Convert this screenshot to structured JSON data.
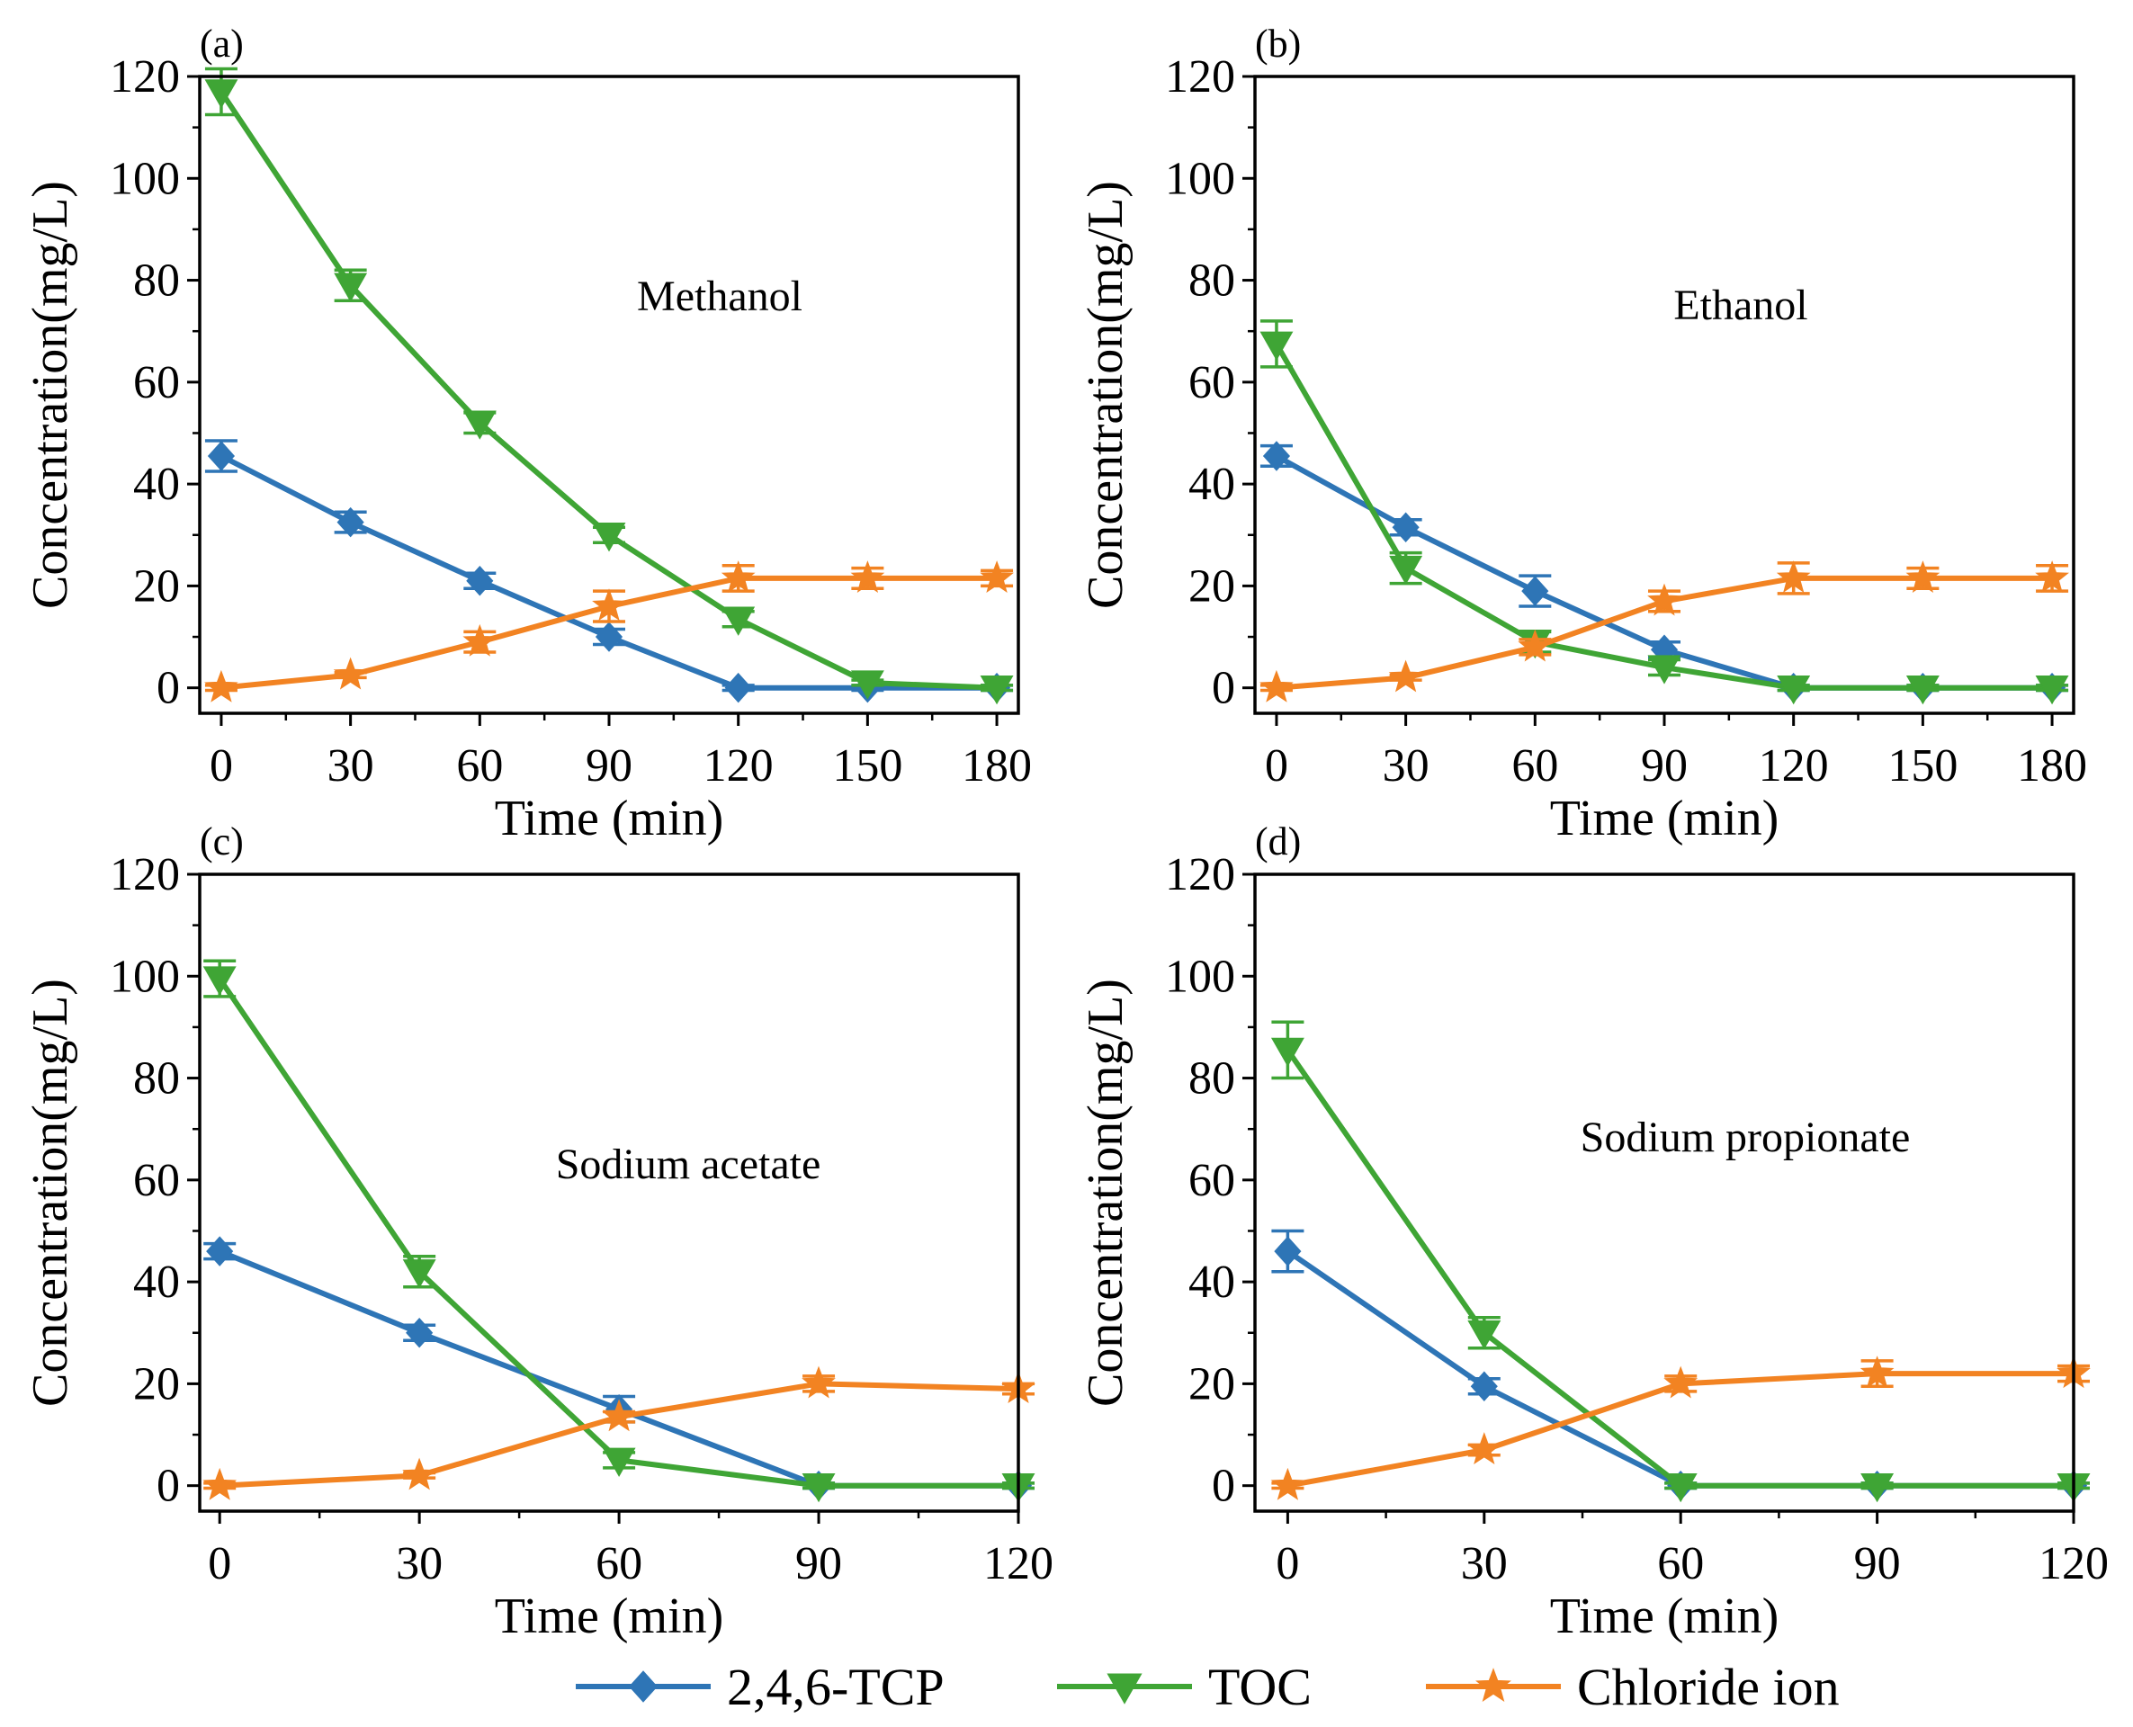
{
  "colors": {
    "tcp": "#2E75B6",
    "toc": "#3FA535",
    "chloride": "#F28322",
    "axis": "#000000"
  },
  "legend": [
    {
      "series": "tcp",
      "label": "2,4,6-TCP",
      "marker": "diamond"
    },
    {
      "series": "toc",
      "label": "TOC",
      "marker": "triangle-down"
    },
    {
      "series": "chloride",
      "label": "Chloride ion",
      "marker": "star"
    }
  ],
  "chart_data": [
    {
      "type": "line",
      "panel": "(a)",
      "annotation": "Methanol",
      "xlabel": "Time (min)",
      "ylabel": "Concentration(mg/L)",
      "xlim": [
        -5,
        185
      ],
      "ylim": [
        -5,
        120
      ],
      "xticks": [
        0,
        30,
        60,
        90,
        120,
        150,
        180
      ],
      "yticks": [
        0,
        20,
        40,
        60,
        80,
        100,
        120
      ],
      "x": [
        0,
        30,
        60,
        90,
        120,
        150,
        180
      ],
      "series": [
        {
          "name": "2,4,6-TCP",
          "key": "tcp",
          "values": [
            45.5,
            32.5,
            21,
            10,
            0,
            0,
            0
          ],
          "errors": [
            3,
            2,
            1.5,
            1.5,
            0.5,
            0.5,
            0.5
          ]
        },
        {
          "name": "TOC",
          "key": "toc",
          "values": [
            117,
            79,
            52,
            30,
            13.5,
            1,
            0
          ],
          "errors": [
            4.5,
            3,
            2,
            1.5,
            1.5,
            0.5,
            0.5
          ]
        },
        {
          "name": "Chloride ion",
          "key": "chloride",
          "values": [
            0,
            2.5,
            9,
            16,
            21.5,
            21.5,
            21.5
          ],
          "errors": [
            0.5,
            0.5,
            2,
            3,
            2.5,
            2,
            1.5
          ]
        }
      ]
    },
    {
      "type": "line",
      "panel": "(b)",
      "annotation": "Ethanol",
      "xlabel": "Time (min)",
      "ylabel": "Concentration(mg/L)",
      "xlim": [
        -5,
        185
      ],
      "ylim": [
        -5,
        120
      ],
      "xticks": [
        0,
        30,
        60,
        90,
        120,
        150,
        180
      ],
      "yticks": [
        0,
        20,
        40,
        60,
        80,
        100,
        120
      ],
      "x": [
        0,
        30,
        60,
        90,
        120,
        150,
        180
      ],
      "series": [
        {
          "name": "2,4,6-TCP",
          "key": "tcp",
          "values": [
            45.5,
            31.5,
            19,
            7.5,
            0,
            0,
            0
          ],
          "errors": [
            2,
            1.5,
            3,
            1.5,
            0.5,
            0.5,
            0.5
          ]
        },
        {
          "name": "TOC",
          "key": "toc",
          "values": [
            67.5,
            23.5,
            9,
            4,
            0,
            0,
            0
          ],
          "errors": [
            4.5,
            3,
            2,
            1.5,
            0.5,
            0.5,
            0.5
          ]
        },
        {
          "name": "Chloride ion",
          "key": "chloride",
          "values": [
            0,
            2,
            8,
            17,
            21.5,
            21.5,
            21.5
          ],
          "errors": [
            0.5,
            0.5,
            1.5,
            2,
            3,
            2,
            2.5
          ]
        }
      ]
    },
    {
      "type": "line",
      "panel": "(c)",
      "annotation": "Sodium acetate",
      "xlabel": "Time (min)",
      "ylabel": "Concentration(mg/L)",
      "xlim": [
        -3,
        120
      ],
      "ylim": [
        -5,
        120
      ],
      "xticks": [
        0,
        30,
        60,
        90,
        120
      ],
      "yticks": [
        0,
        20,
        40,
        60,
        80,
        100,
        120
      ],
      "x": [
        0,
        30,
        60,
        90,
        120
      ],
      "series": [
        {
          "name": "2,4,6-TCP",
          "key": "tcp",
          "values": [
            46,
            30,
            15,
            0,
            0
          ],
          "errors": [
            1.5,
            1.5,
            2.5,
            0.5,
            0.5
          ]
        },
        {
          "name": "TOC",
          "key": "toc",
          "values": [
            99.5,
            42,
            5,
            0,
            0
          ],
          "errors": [
            3.5,
            3,
            1.5,
            0.5,
            0.5
          ]
        },
        {
          "name": "Chloride ion",
          "key": "chloride",
          "values": [
            0,
            2,
            13.5,
            20,
            19
          ],
          "errors": [
            0.5,
            0.5,
            1,
            1.5,
            1
          ]
        }
      ]
    },
    {
      "type": "line",
      "panel": "(d)",
      "annotation": "Sodium propionate",
      "xlabel": "Time (min)",
      "ylabel": "Concentration(mg/L)",
      "xlim": [
        -5,
        120
      ],
      "ylim": [
        -5,
        120
      ],
      "xticks": [
        0,
        30,
        60,
        90,
        120
      ],
      "yticks": [
        0,
        20,
        40,
        60,
        80,
        100,
        120
      ],
      "x": [
        0,
        30,
        60,
        90,
        120
      ],
      "series": [
        {
          "name": "2,4,6-TCP",
          "key": "tcp",
          "values": [
            46,
            19.5,
            0,
            0,
            0
          ],
          "errors": [
            4,
            1.5,
            0.5,
            0.5,
            0.5
          ]
        },
        {
          "name": "TOC",
          "key": "toc",
          "values": [
            85.5,
            30,
            0,
            0,
            0
          ],
          "errors": [
            5.5,
            3,
            0.5,
            0.5,
            0.5
          ]
        },
        {
          "name": "Chloride ion",
          "key": "chloride",
          "values": [
            0,
            7,
            20,
            22,
            22
          ],
          "errors": [
            0.5,
            1,
            1.5,
            2.5,
            1.5
          ]
        }
      ]
    }
  ]
}
